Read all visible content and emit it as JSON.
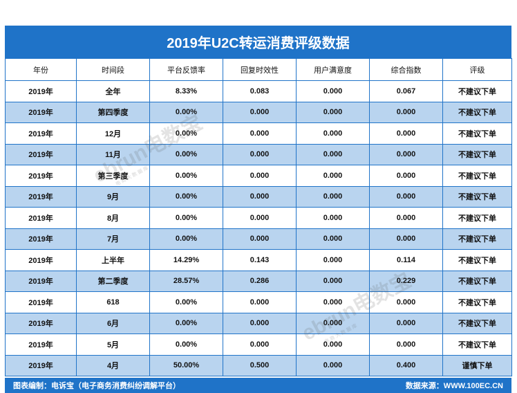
{
  "title": "2019年U2C转运消费评级数据",
  "table": {
    "headers": [
      "年份",
      "时间段",
      "平台反馈率",
      "回复时效性",
      "用户满意度",
      "综合指数",
      "评级"
    ],
    "rows": [
      [
        "2019年",
        "全年",
        "8.33%",
        "0.083",
        "0.000",
        "0.067",
        "不建议下单"
      ],
      [
        "2019年",
        "第四季度",
        "0.00%",
        "0.000",
        "0.000",
        "0.000",
        "不建议下单"
      ],
      [
        "2019年",
        "12月",
        "0.00%",
        "0.000",
        "0.000",
        "0.000",
        "不建议下单"
      ],
      [
        "2019年",
        "11月",
        "0.00%",
        "0.000",
        "0.000",
        "0.000",
        "不建议下单"
      ],
      [
        "2019年",
        "第三季度",
        "0.00%",
        "0.000",
        "0.000",
        "0.000",
        "不建议下单"
      ],
      [
        "2019年",
        "9月",
        "0.00%",
        "0.000",
        "0.000",
        "0.000",
        "不建议下单"
      ],
      [
        "2019年",
        "8月",
        "0.00%",
        "0.000",
        "0.000",
        "0.000",
        "不建议下单"
      ],
      [
        "2019年",
        "7月",
        "0.00%",
        "0.000",
        "0.000",
        "0.000",
        "不建议下单"
      ],
      [
        "2019年",
        "上半年",
        "14.29%",
        "0.143",
        "0.000",
        "0.114",
        "不建议下单"
      ],
      [
        "2019年",
        "第二季度",
        "28.57%",
        "0.286",
        "0.000",
        "0.229",
        "不建议下单"
      ],
      [
        "2019年",
        "618",
        "0.00%",
        "0.000",
        "0.000",
        "0.000",
        "不建议下单"
      ],
      [
        "2019年",
        "6月",
        "0.00%",
        "0.000",
        "0.000",
        "0.000",
        "不建议下单"
      ],
      [
        "2019年",
        "5月",
        "0.00%",
        "0.000",
        "0.000",
        "0.000",
        "不建议下单"
      ],
      [
        "2019年",
        "4月",
        "50.00%",
        "0.500",
        "0.000",
        "0.400",
        "谨慎下单"
      ]
    ]
  },
  "footer": {
    "left": "图表编制：电诉宝（电子商务消费纠纷调解平台）",
    "right": "数据来源：WWW.100EC.CN"
  },
  "watermark": {
    "text": "ebrun电数宝",
    "sub": "电商大数据库"
  },
  "colors": {
    "primary": "#1f73c8",
    "alt_row": "#b9d4ef"
  }
}
